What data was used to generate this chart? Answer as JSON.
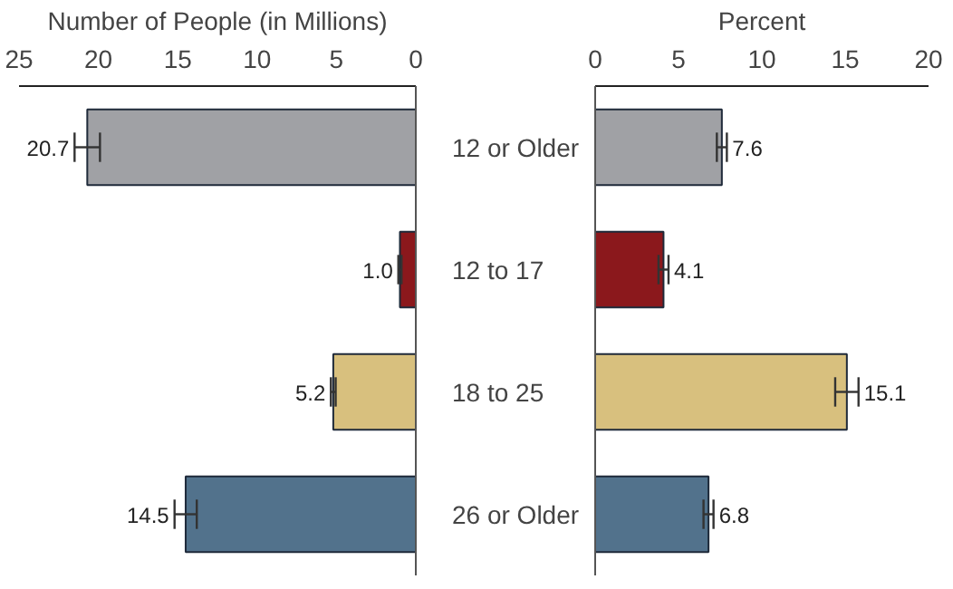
{
  "chart_data": [
    {
      "type": "bar",
      "orientation": "horizontal",
      "xlabel": "Number of People (in Millions)",
      "categories": [
        "12 or Older",
        "12 to 17",
        "18 to 25",
        "26 or Older"
      ],
      "values": [
        20.7,
        1.0,
        5.2,
        14.5
      ],
      "colors": [
        "#a0a1a5",
        "#8b181c",
        "#d8c07e",
        "#52728c"
      ],
      "errors": [
        0.8,
        0.1,
        0.15,
        0.7
      ],
      "value_labels": [
        "20.7",
        "1.0",
        "5.2",
        "14.5"
      ],
      "xlim": [
        25,
        0
      ],
      "xticks": [
        25,
        20,
        15,
        10,
        5,
        0
      ],
      "grid": false
    },
    {
      "type": "bar",
      "orientation": "horizontal",
      "xlabel": "Percent",
      "categories": [
        null,
        null,
        null,
        null
      ],
      "values": [
        7.6,
        4.1,
        15.1,
        6.8
      ],
      "colors": [
        "#a0a1a5",
        "#8b181c",
        "#d8c07e",
        "#52728c"
      ],
      "errors": [
        0.3,
        0.3,
        0.7,
        0.3
      ],
      "value_labels": [
        "7.6",
        "4.1",
        "15.1",
        "6.8"
      ],
      "xlim": [
        0,
        20
      ],
      "xticks": [
        0,
        5,
        10,
        15,
        20
      ],
      "tick_labels": "x",
      "grid": false
    }
  ]
}
